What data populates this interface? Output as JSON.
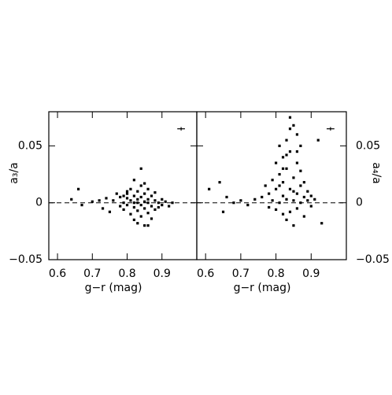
{
  "chart_data": [
    {
      "type": "scatter",
      "xlabel": "g−r (mag)",
      "ylabel": "a₃/a",
      "yaxis_position": "left",
      "color": "#000000",
      "xlim": [
        0.575,
        1.0
      ],
      "ylim": [
        -0.05,
        0.08
      ],
      "xticks": [
        0.6,
        0.7,
        0.8,
        0.9
      ],
      "yticks": [
        {
          "value": -0.05,
          "label": "−0.05"
        },
        0,
        0.05
      ],
      "hline": 0,
      "error_bar": {
        "x": 0.955,
        "y": 0.065,
        "xerr": 0.011,
        "yerr": 0.0015
      },
      "x": [
        0.64,
        0.66,
        0.67,
        0.7,
        0.72,
        0.73,
        0.74,
        0.75,
        0.76,
        0.77,
        0.78,
        0.78,
        0.79,
        0.79,
        0.8,
        0.8,
        0.8,
        0.81,
        0.81,
        0.81,
        0.82,
        0.82,
        0.82,
        0.82,
        0.83,
        0.83,
        0.83,
        0.83,
        0.84,
        0.84,
        0.84,
        0.84,
        0.84,
        0.85,
        0.85,
        0.85,
        0.85,
        0.86,
        0.86,
        0.86,
        0.86,
        0.87,
        0.87,
        0.87,
        0.88,
        0.88,
        0.88,
        0.89,
        0.89,
        0.9,
        0.9,
        0.91,
        0.92,
        0.93,
        0.86,
        0.82,
        0.83,
        0.8,
        0.79,
        0.85
      ],
      "y": [
        0.003,
        0.012,
        -0.002,
        0.001,
        0.002,
        -0.005,
        0.004,
        -0.008,
        0.002,
        0.008,
        -0.003,
        0.005,
        0.0,
        -0.006,
        0.008,
        -0.002,
        0.004,
        -0.01,
        0.002,
        0.012,
        -0.004,
        0.006,
        0.0,
        -0.015,
        0.003,
        -0.007,
        0.01,
        0.0,
        -0.002,
        0.005,
        -0.012,
        0.015,
        0.03,
        0.001,
        -0.005,
        0.008,
        -0.02,
        0.003,
        -0.009,
        0.012,
        0.0,
        -0.003,
        0.006,
        -0.014,
        0.002,
        -0.006,
        0.009,
        0.0,
        -0.004,
        0.003,
        -0.002,
        0.001,
        -0.003,
        0.0,
        -0.02,
        0.02,
        -0.018,
        0.01,
        0.006,
        0.017
      ]
    },
    {
      "type": "scatter",
      "xlabel": "g−r (mag)",
      "ylabel": "a₄/a",
      "yaxis_position": "right",
      "color": "#000000",
      "xlim": [
        0.575,
        1.0
      ],
      "ylim": [
        -0.05,
        0.08
      ],
      "xticks": [
        0.6,
        0.7,
        0.8,
        0.9
      ],
      "yticks": [
        {
          "value": -0.05,
          "label": "−0.05"
        },
        0,
        0.05
      ],
      "hline": 0,
      "error_bar": {
        "x": 0.955,
        "y": 0.065,
        "xerr": 0.011,
        "yerr": 0.0015
      },
      "x": [
        0.61,
        0.64,
        0.65,
        0.66,
        0.68,
        0.7,
        0.72,
        0.74,
        0.76,
        0.77,
        0.78,
        0.78,
        0.79,
        0.79,
        0.8,
        0.8,
        0.8,
        0.81,
        0.81,
        0.81,
        0.82,
        0.82,
        0.82,
        0.82,
        0.83,
        0.83,
        0.83,
        0.83,
        0.84,
        0.84,
        0.84,
        0.84,
        0.85,
        0.85,
        0.85,
        0.85,
        0.86,
        0.86,
        0.86,
        0.86,
        0.87,
        0.87,
        0.87,
        0.88,
        0.88,
        0.88,
        0.89,
        0.89,
        0.9,
        0.9,
        0.91,
        0.92,
        0.93,
        0.84,
        0.83,
        0.82,
        0.86,
        0.87,
        0.81,
        0.85
      ],
      "y": [
        0.012,
        0.018,
        -0.008,
        0.005,
        0.0,
        0.002,
        -0.002,
        0.003,
        0.005,
        0.015,
        0.008,
        -0.004,
        0.02,
        0.002,
        0.035,
        -0.006,
        0.012,
        0.05,
        0.0,
        0.025,
        -0.01,
        0.04,
        0.006,
        0.018,
        0.055,
        -0.015,
        0.003,
        0.03,
        0.075,
        0.012,
        -0.008,
        0.045,
        0.068,
        0.002,
        0.022,
        -0.02,
        0.06,
        0.008,
        0.035,
        -0.005,
        0.015,
        0.0,
        0.028,
        0.005,
        -0.012,
        0.018,
        0.002,
        0.01,
        -0.003,
        0.006,
        0.003,
        0.055,
        -0.018,
        0.065,
        0.042,
        0.03,
        0.045,
        0.05,
        0.015,
        0.01
      ]
    }
  ]
}
